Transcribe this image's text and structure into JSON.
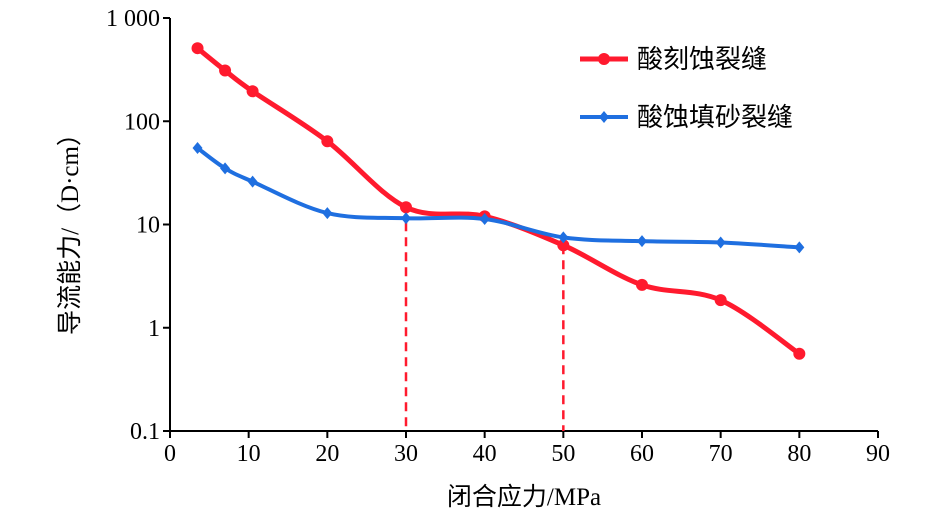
{
  "chart_data": {
    "type": "line",
    "title": "",
    "xlabel": "闭合应力/MPa",
    "ylabel": "导流能力/（D·cm）",
    "xlim": [
      0,
      90
    ],
    "ylim": [
      0.1,
      1000
    ],
    "yscale": "log",
    "grid": false,
    "legend_placement": "top-right",
    "x_ticks": [
      "0",
      "10",
      "20",
      "30",
      "40",
      "50",
      "60",
      "70",
      "80",
      "90"
    ],
    "x_tick_values": [
      0,
      10,
      20,
      30,
      40,
      50,
      60,
      70,
      80,
      90
    ],
    "y_ticks": [
      "0.1",
      "1",
      "10",
      "100",
      "1 000"
    ],
    "y_tick_values": [
      0.1,
      1,
      10,
      100,
      1000
    ],
    "series": [
      {
        "name": "酸刻蚀裂缝",
        "color": "#ff1a2e",
        "marker": "circle",
        "x": [
          3.5,
          7,
          10.5,
          20,
          30,
          40,
          50,
          60,
          70,
          80
        ],
        "y": [
          510,
          310,
          195,
          64,
          14.7,
          12,
          6.3,
          2.6,
          1.85,
          0.56
        ]
      },
      {
        "name": "酸蚀填砂裂缝",
        "color": "#1f6fe0",
        "marker": "diamond",
        "x": [
          3.5,
          7,
          10.5,
          20,
          30,
          40,
          50,
          60,
          70,
          80
        ],
        "y": [
          55,
          35,
          26,
          12.9,
          11.5,
          11.3,
          7.5,
          6.9,
          6.7,
          6.0
        ]
      }
    ],
    "annotations": [
      {
        "type": "vertical-dashed-line",
        "x": 30,
        "color": "#ff1a2e"
      },
      {
        "type": "vertical-dashed-line",
        "x": 50,
        "color": "#ff1a2e"
      }
    ]
  }
}
